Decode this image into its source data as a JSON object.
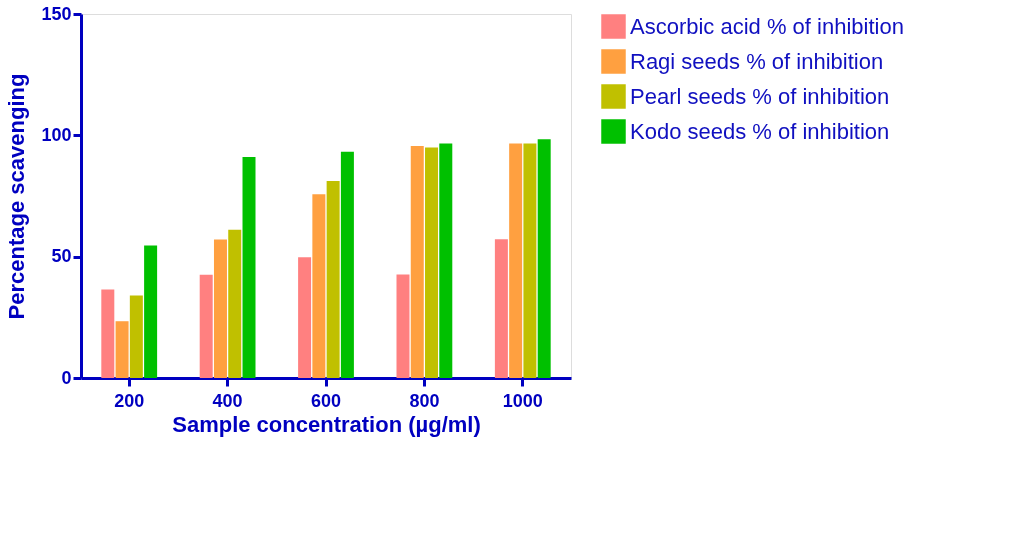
{
  "chart_data": {
    "type": "bar",
    "xlabel": "Sample concentration (µg/ml)",
    "ylabel": "Percentage scavenging",
    "categories": [
      "200",
      "400",
      "600",
      "800",
      "1000"
    ],
    "series": [
      {
        "name": "Ascorbic acid % of inhibition",
        "color": "#ff8080",
        "values": [
          36.5,
          42.5,
          49.8,
          42.7,
          57.2
        ]
      },
      {
        "name": "Ragi seeds % of inhibition",
        "color": "#ffa040",
        "values": [
          23.4,
          57.1,
          75.7,
          95.6,
          96.6
        ]
      },
      {
        "name": "Pearl seeds % of inhibition",
        "color": "#c0c000",
        "values": [
          34,
          61.1,
          81.2,
          95,
          96.6
        ]
      },
      {
        "name": "Kodo seeds % of inhibition",
        "color": "#00c000",
        "values": [
          54.6,
          91.1,
          93.2,
          96.6,
          98.4
        ]
      }
    ],
    "ylim": [
      0,
      150
    ],
    "yticks": [
      0,
      50,
      100,
      150
    ],
    "grid": false,
    "legend": "top right"
  }
}
